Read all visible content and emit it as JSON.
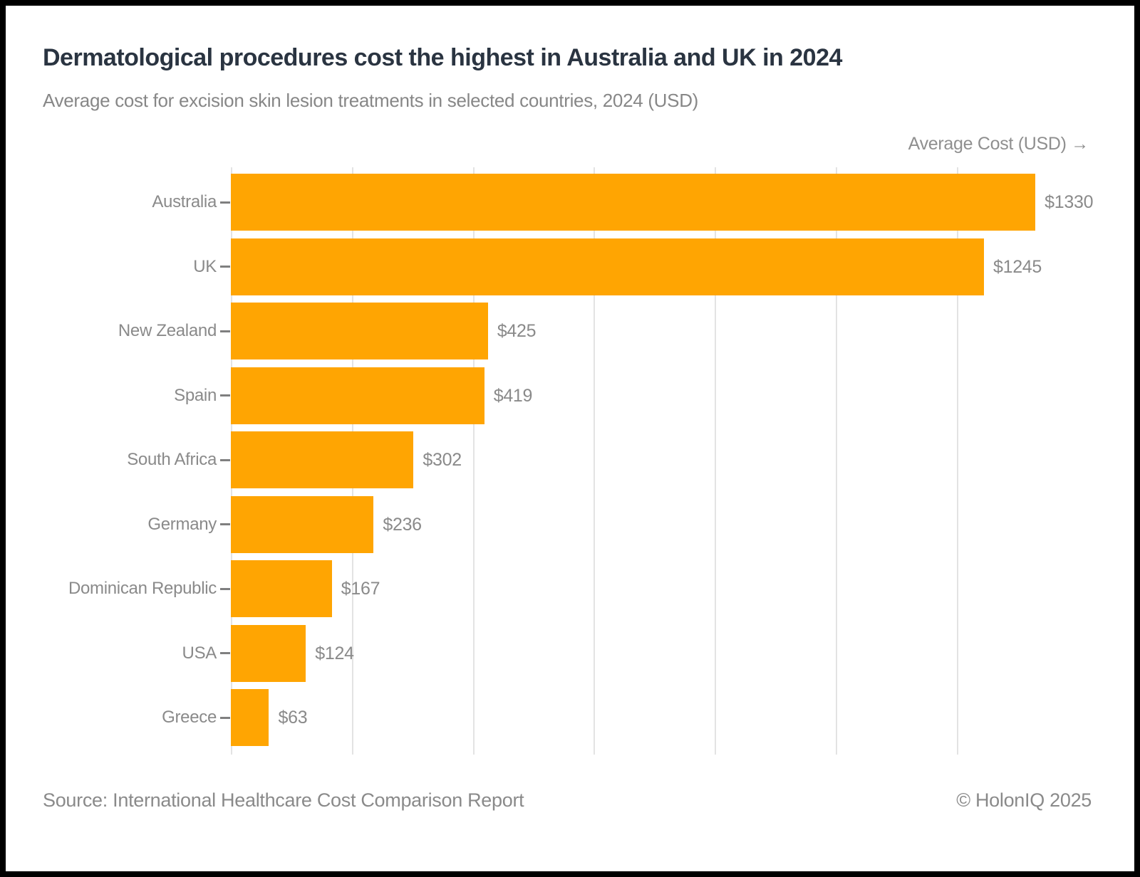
{
  "title": "Dermatological procedures cost the highest in Australia and UK in 2024",
  "subtitle": "Average cost for excision skin lesion treatments in selected countries, 2024 (USD)",
  "axis_label": "Average Cost (USD) →",
  "footer": {
    "source": "Source: International Healthcare Cost Comparison Report",
    "copyright": "© HolonIQ 2025"
  },
  "colors": {
    "bar": "#FFA502",
    "title_text": "#2A3441",
    "muted_text": "#8A8A8A",
    "gridline": "#E3E3E3",
    "frame": "#000000"
  },
  "chart_data": {
    "type": "bar",
    "orientation": "horizontal",
    "title": "Dermatological procedures cost the highest in Australia and UK in 2024",
    "subtitle": "Average cost for excision skin lesion treatments in selected countries, 2024 (USD)",
    "xlabel": "Average Cost (USD)",
    "ylabel": "",
    "categories": [
      "Australia",
      "UK",
      "New Zealand",
      "Spain",
      "South Africa",
      "Germany",
      "Dominican Republic",
      "USA",
      "Greece"
    ],
    "values": [
      1330,
      1245,
      425,
      419,
      302,
      236,
      167,
      124,
      63
    ],
    "value_labels": [
      "$1330",
      "$1245",
      "$425",
      "$419",
      "$302",
      "$236",
      "$167",
      "$124",
      "$63"
    ],
    "xlim": [
      0,
      1400
    ],
    "gridline_step": 200,
    "gridline_values": [
      0,
      200,
      400,
      600,
      800,
      1000,
      1200
    ],
    "grid": true,
    "legend": false
  }
}
